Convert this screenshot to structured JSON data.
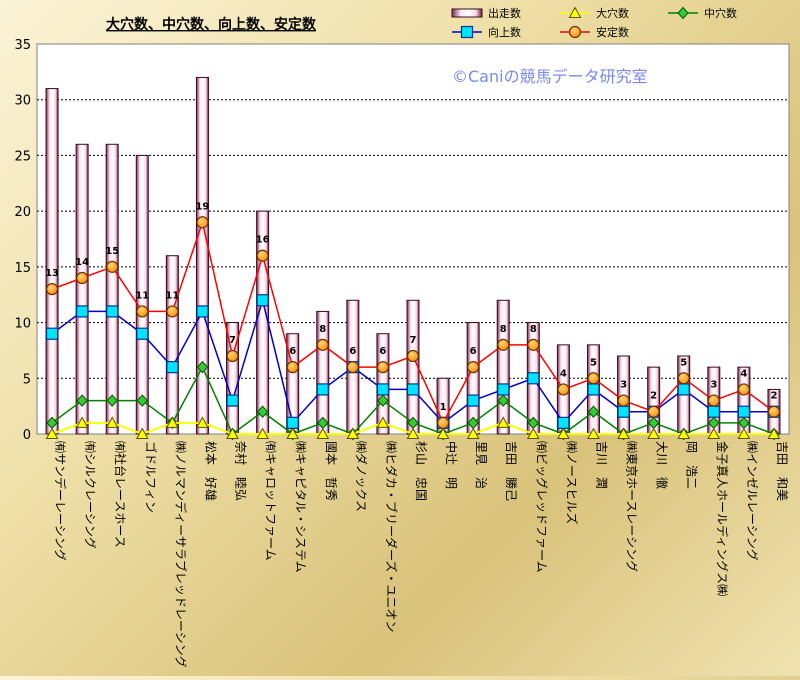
{
  "chart_data": {
    "type": "bar",
    "title": "大穴数、中穴数、向上数、安定数",
    "watermark": "©Caniの競馬データ研究室",
    "xlabel": "",
    "ylabel": "",
    "ylim": [
      0,
      35
    ],
    "yticks": [
      0,
      5,
      10,
      15,
      20,
      25,
      30,
      35
    ],
    "grid": true,
    "legend_position": "top-right",
    "categories": [
      "㈲サンデーレーシング",
      "㈲シルクレーシング",
      "㈲社台レースホース",
      "ゴドルフィン",
      "㈱ノルマンディーサラブレッドレーシング",
      "松本　好雄",
      "奈村　睦弘",
      "㈲キャロットファーム",
      "㈱キャピタル・システム",
      "國本　哲秀",
      "㈱ダノックス",
      "㈱ヒダカ・ブリーダーズ・ユニオン",
      "杉山　忠国",
      "中辻　明",
      "里見　治",
      "吉田　勝己",
      "㈲ビッグレッドファーム",
      "㈱ノースヒルズ",
      "吉川　潤",
      "㈱東京ホースレーシング",
      "大川　徹",
      "岡　浩二",
      "金子真人ホールディングス㈱",
      "㈱インゼルレーシング",
      "吉田　和美"
    ],
    "series": [
      {
        "name": "出走数",
        "kind": "bar",
        "color": "#5a1a3a",
        "values": [
          31,
          26,
          26,
          25,
          16,
          32,
          10,
          20,
          9,
          11,
          12,
          9,
          12,
          5,
          10,
          12,
          10,
          8,
          8,
          7,
          6,
          7,
          6,
          6,
          4
        ]
      },
      {
        "name": "大穴数",
        "kind": "line",
        "color": "#ffff00",
        "marker": "triangle",
        "values": [
          0,
          1,
          1,
          0,
          1,
          1,
          0,
          0,
          0,
          0,
          0,
          1,
          0,
          0,
          0,
          1,
          0,
          0,
          0,
          0,
          0,
          0,
          0,
          0,
          0
        ]
      },
      {
        "name": "中穴数",
        "kind": "line",
        "color": "#008000",
        "marker": "diamond",
        "values": [
          1,
          3,
          3,
          3,
          1,
          6,
          0,
          2,
          0,
          1,
          0,
          3,
          1,
          0,
          1,
          3,
          1,
          0,
          2,
          0,
          1,
          0,
          1,
          1,
          0
        ]
      },
      {
        "name": "向上数",
        "kind": "line",
        "color": "#0000cc",
        "marker": "square",
        "values": [
          9,
          11,
          11,
          9,
          6,
          11,
          3,
          12,
          1,
          4,
          6,
          4,
          4,
          1,
          3,
          4,
          5,
          1,
          4,
          2,
          2,
          4,
          2,
          2,
          2
        ]
      },
      {
        "name": "安定数",
        "kind": "line",
        "color": "#ff0000",
        "marker": "circle",
        "values": [
          13,
          14,
          15,
          11,
          11,
          19,
          7,
          16,
          6,
          8,
          6,
          6,
          7,
          1,
          6,
          8,
          8,
          4,
          5,
          3,
          2,
          5,
          3,
          4,
          2
        ]
      }
    ],
    "data_labels": {
      "series": "安定数",
      "values": [
        "13",
        "14",
        "15",
        "11",
        "11",
        "19",
        "7",
        "16",
        "6",
        "8",
        "6",
        "6",
        "7",
        "1",
        "6",
        "8",
        "8",
        "4",
        "5",
        "3",
        "2",
        "5",
        "3",
        "4",
        "2"
      ]
    }
  }
}
